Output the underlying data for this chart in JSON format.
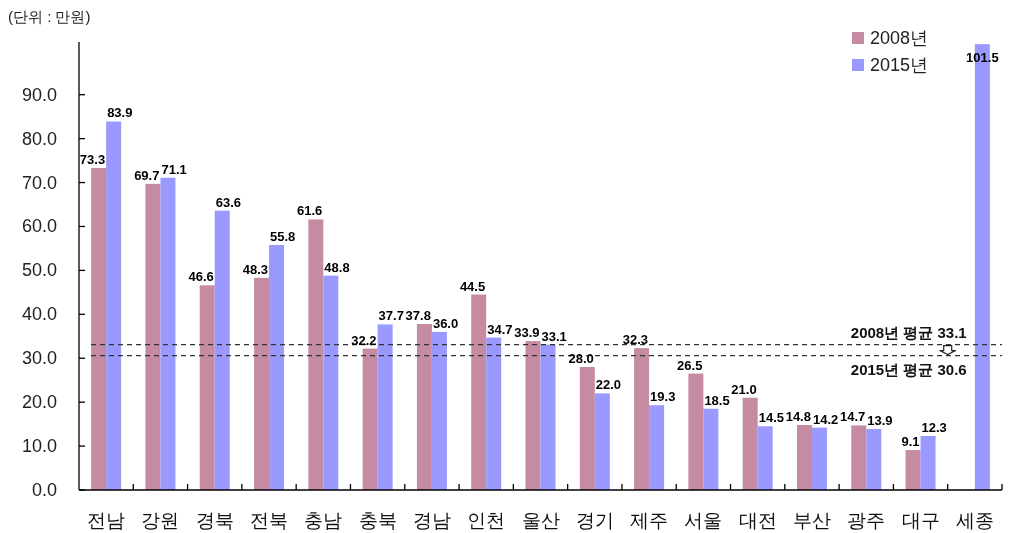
{
  "chart_data": {
    "type": "bar",
    "ylabel": "(단위 : 만원)",
    "categories": [
      "전남",
      "강원",
      "경북",
      "전북",
      "충남",
      "충북",
      "경남",
      "인천",
      "울산",
      "경기",
      "제주",
      "서울",
      "대전",
      "부산",
      "광주",
      "대구",
      "세종"
    ],
    "series": [
      {
        "name": "2008년",
        "color": "#c58ba3",
        "values": [
          73.3,
          69.7,
          46.6,
          48.3,
          61.6,
          32.2,
          37.8,
          44.5,
          33.9,
          28.0,
          32.3,
          26.5,
          21.0,
          14.8,
          14.7,
          9.1,
          null
        ],
        "value_labels": [
          "73.3",
          "69.7",
          "46.6",
          "48.3",
          "61.6",
          "32.2",
          "37.8",
          "44.5",
          "33.9",
          "28.0",
          "32.3",
          "26.5",
          "21.0",
          "14.8",
          "14.7",
          "9.1",
          null
        ]
      },
      {
        "name": "2015년",
        "color": "#9999ff",
        "values": [
          83.9,
          71.1,
          63.6,
          55.8,
          48.8,
          37.7,
          36.0,
          34.7,
          33.1,
          22.0,
          19.3,
          18.5,
          14.5,
          14.2,
          13.9,
          12.3,
          101.5
        ],
        "value_labels": [
          "83.9",
          "71.1",
          "63.6",
          "55.8",
          "48.8",
          "37.7",
          "36.0",
          "34.7",
          "33.1",
          "22.0",
          "19.3",
          "18.5",
          "14.5",
          "14.2",
          "13.9",
          "12.3",
          "101.5"
        ]
      }
    ],
    "ylim": [
      0,
      102
    ],
    "yticks": [
      {
        "value": 0,
        "label": "0.0"
      },
      {
        "value": 10,
        "label": "10.0"
      },
      {
        "value": 20,
        "label": "20.0"
      },
      {
        "value": 30,
        "label": "30.0"
      },
      {
        "value": 40,
        "label": "40.0"
      },
      {
        "value": 50,
        "label": "50.0"
      },
      {
        "value": 60,
        "label": "60.0"
      },
      {
        "value": 70,
        "label": "70.0"
      },
      {
        "value": 80,
        "label": "80.0"
      },
      {
        "value": 90,
        "label": "90.0"
      }
    ],
    "legend": "top right",
    "ref_lines": [
      {
        "axis": "y",
        "value": 33.1,
        "label": "2008년 평균 33.1",
        "color": "#333333",
        "line_style": "dashed"
      },
      {
        "axis": "y",
        "value": 30.6,
        "label": "2015년 평균 30.6",
        "color": "#333333",
        "line_style": "dashed"
      }
    ]
  }
}
